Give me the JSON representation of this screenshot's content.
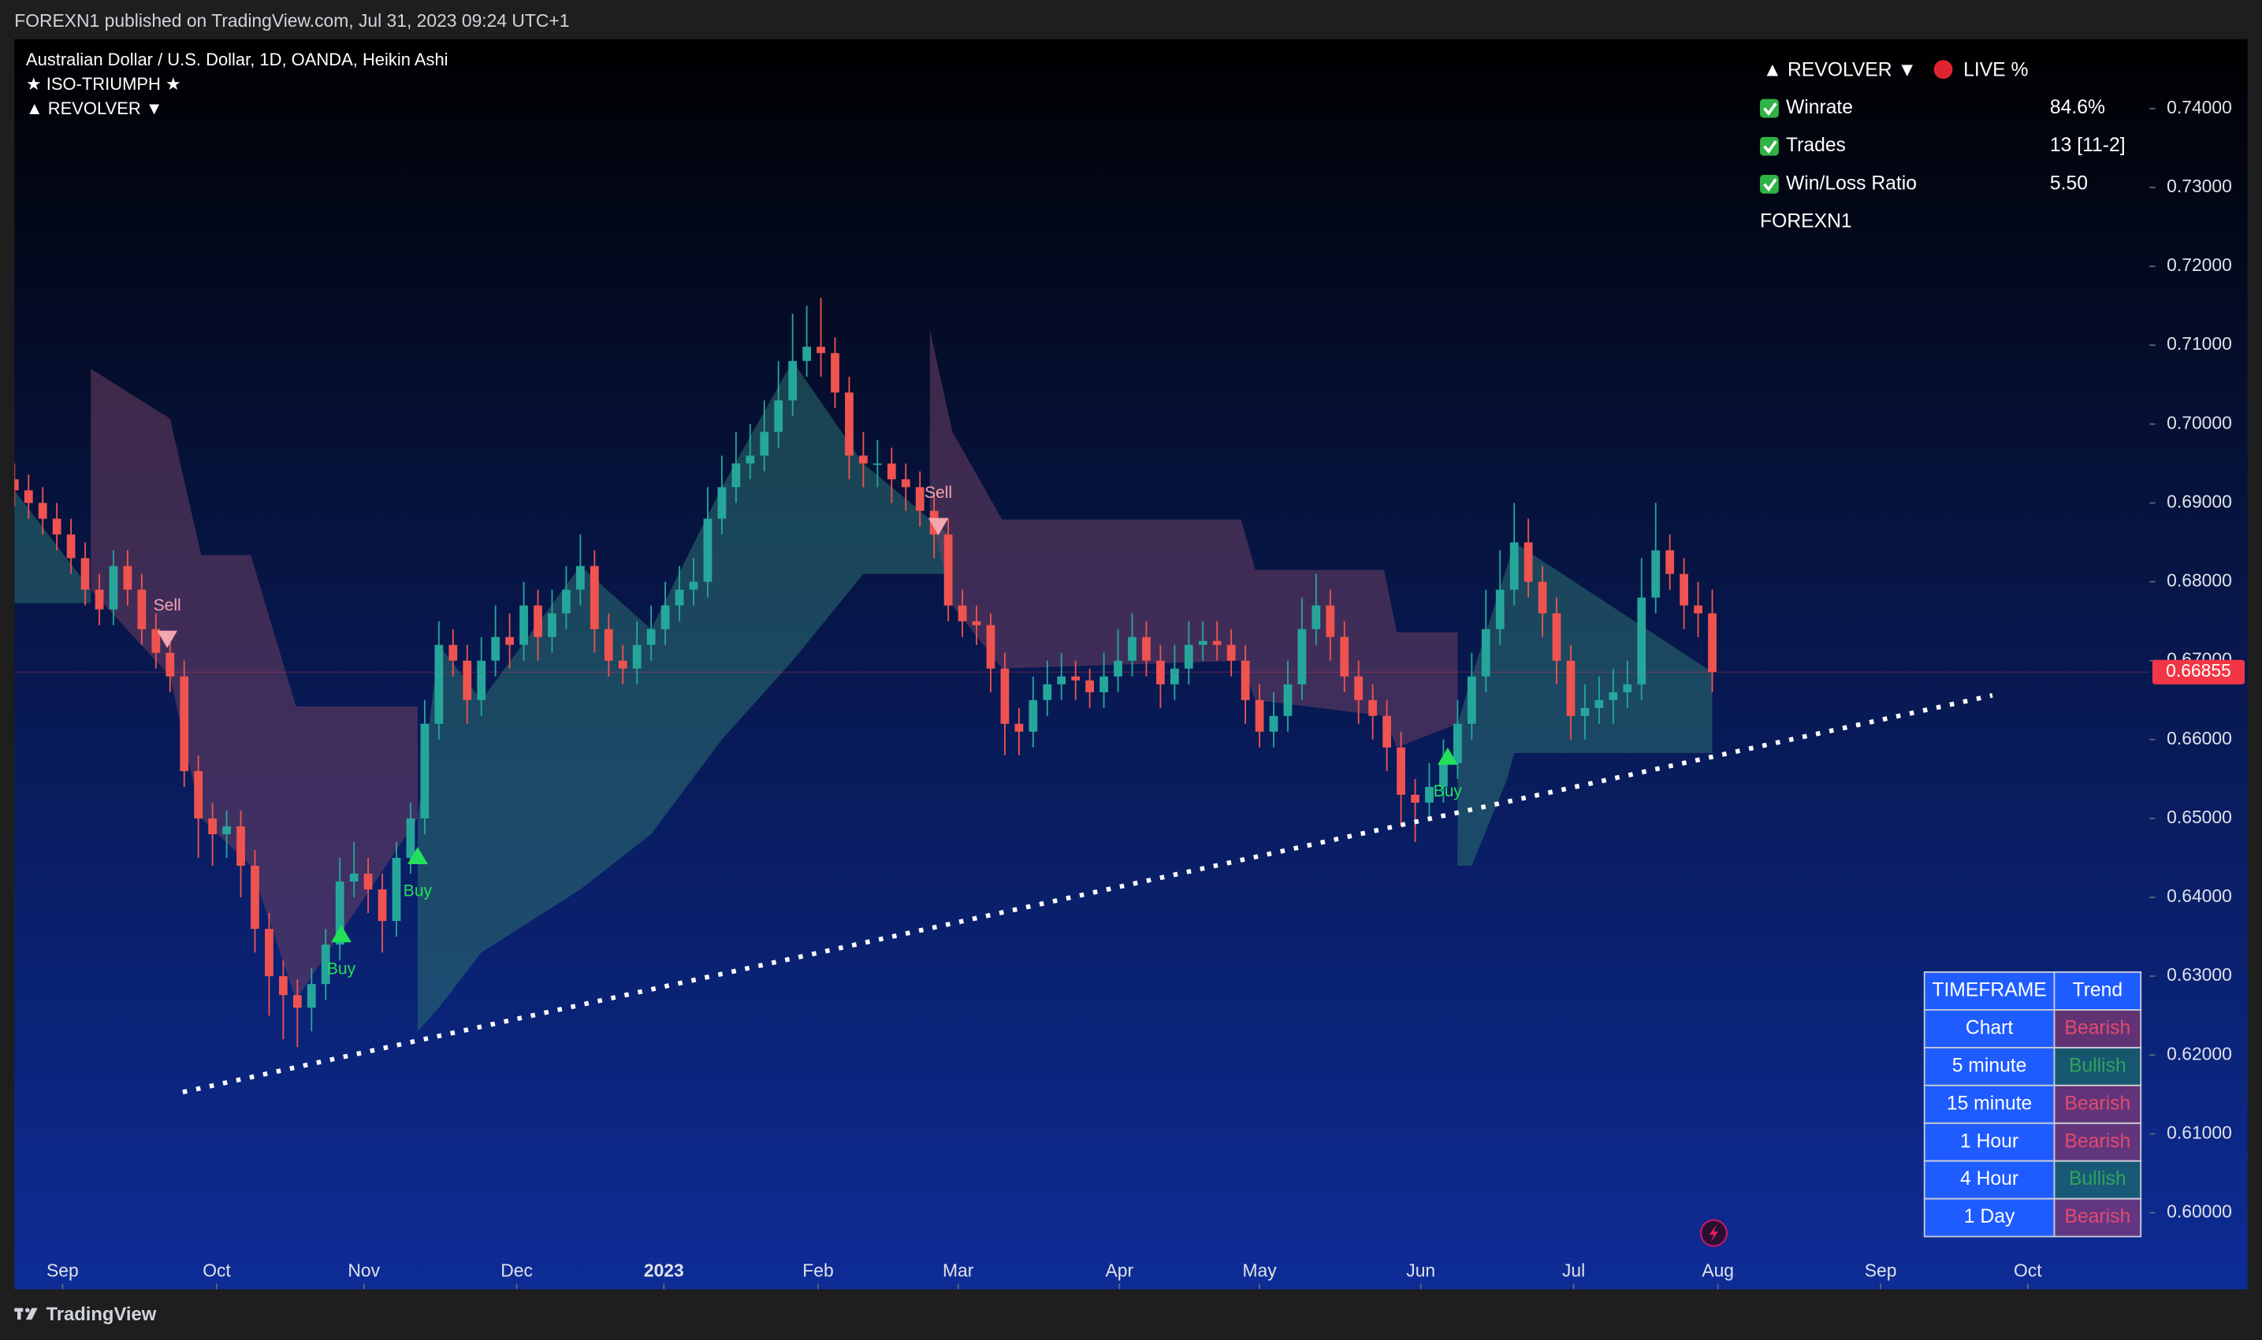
{
  "page": {
    "header": "FOREXN1 published on TradingView.com, Jul 31, 2023 09:24 UTC+1",
    "brand": "TradingView"
  },
  "chart_data": {
    "type": "candlestick",
    "legend": [
      "Australian Dollar / U.S. Dollar, 1D, OANDA, Heikin Ashi",
      "★ ISO-TRIUMPH ★",
      "▲ REVOLVER ▼"
    ],
    "up_color": "#26a69a",
    "down_color": "#ef5350",
    "xlim": [
      0,
      150.9
    ],
    "xticks": [
      {
        "value": 3.4,
        "label": "Sep"
      },
      {
        "value": 14.3,
        "label": "Oct"
      },
      {
        "value": 24.7,
        "label": "Nov"
      },
      {
        "value": 35.5,
        "label": "Dec"
      },
      {
        "value": 45.9,
        "label": "2023",
        "bold": true
      },
      {
        "value": 56.8,
        "label": "Feb"
      },
      {
        "value": 66.7,
        "label": "Mar"
      },
      {
        "value": 78.1,
        "label": "Apr"
      },
      {
        "value": 88.0,
        "label": "May"
      },
      {
        "value": 99.4,
        "label": "Jun"
      },
      {
        "value": 110.2,
        "label": "Jul"
      },
      {
        "value": 120.4,
        "label": "Aug"
      },
      {
        "value": 131.9,
        "label": "Sep"
      },
      {
        "value": 142.3,
        "label": "Oct"
      }
    ],
    "ylim": [
      0.5903,
      0.7488
    ],
    "yticks": [
      {
        "value": 0.74,
        "label": "0.74000"
      },
      {
        "value": 0.73,
        "label": "0.73000"
      },
      {
        "value": 0.72,
        "label": "0.72000"
      },
      {
        "value": 0.71,
        "label": "0.71000"
      },
      {
        "value": 0.7,
        "label": "0.70000"
      },
      {
        "value": 0.69,
        "label": "0.69000"
      },
      {
        "value": 0.68,
        "label": "0.68000"
      },
      {
        "value": 0.67,
        "label": "0.67000"
      },
      {
        "value": 0.66,
        "label": "0.66000"
      },
      {
        "value": 0.65,
        "label": "0.65000"
      },
      {
        "value": 0.64,
        "label": "0.64000"
      },
      {
        "value": 0.63,
        "label": "0.63000"
      },
      {
        "value": 0.62,
        "label": "0.62000"
      },
      {
        "value": 0.61,
        "label": "0.61000"
      },
      {
        "value": 0.6,
        "label": "0.60000"
      }
    ],
    "grid": false,
    "open": [
      0.693,
      0.6916,
      0.69,
      0.688,
      0.686,
      0.683,
      0.679,
      0.6765,
      0.682,
      0.679,
      0.674,
      0.671,
      0.668,
      0.656,
      0.65,
      0.648,
      0.649,
      0.644,
      0.636,
      0.63,
      0.6276,
      0.626,
      0.629,
      0.634,
      0.642,
      0.643,
      0.641,
      0.637,
      0.645,
      0.65,
      0.662,
      0.672,
      0.67,
      0.665,
      0.67,
      0.673,
      0.672,
      0.677,
      0.673,
      0.676,
      0.679,
      0.682,
      0.674,
      0.67,
      0.669,
      0.672,
      0.674,
      0.677,
      0.679,
      0.68,
      0.688,
      0.692,
      0.695,
      0.696,
      0.699,
      0.703,
      0.708,
      0.7098,
      0.709,
      0.704,
      0.696,
      0.695,
      0.695,
      0.693,
      0.692,
      0.689,
      0.686,
      0.677,
      0.675,
      0.6745,
      0.669,
      0.662,
      0.661,
      0.665,
      0.667,
      0.668,
      0.6675,
      0.666,
      0.668,
      0.67,
      0.673,
      0.67,
      0.667,
      0.669,
      0.672,
      0.6725,
      0.672,
      0.67,
      0.665,
      0.661,
      0.663,
      0.667,
      0.674,
      0.677,
      0.673,
      0.668,
      0.665,
      0.663,
      0.659,
      0.653,
      0.652,
      0.654,
      0.657,
      0.662,
      0.668,
      0.674,
      0.679,
      0.685,
      0.68,
      0.676,
      0.67,
      0.663,
      0.664,
      0.665,
      0.666,
      0.667,
      0.678,
      0.684,
      0.681,
      0.677,
      0.676
    ],
    "high": [
      0.695,
      0.6936,
      0.692,
      0.69,
      0.688,
      0.685,
      0.681,
      0.684,
      0.684,
      0.681,
      0.676,
      0.673,
      0.67,
      0.658,
      0.652,
      0.651,
      0.651,
      0.646,
      0.638,
      0.632,
      0.6296,
      0.631,
      0.636,
      0.645,
      0.647,
      0.645,
      0.643,
      0.647,
      0.652,
      0.665,
      0.675,
      0.674,
      0.672,
      0.673,
      0.677,
      0.676,
      0.68,
      0.679,
      0.679,
      0.682,
      0.686,
      0.684,
      0.676,
      0.672,
      0.675,
      0.677,
      0.68,
      0.682,
      0.683,
      0.692,
      0.696,
      0.699,
      0.7,
      0.703,
      0.708,
      0.714,
      0.715,
      0.716,
      0.711,
      0.706,
      0.699,
      0.698,
      0.697,
      0.695,
      0.694,
      0.691,
      0.688,
      0.679,
      0.677,
      0.676,
      0.671,
      0.664,
      0.668,
      0.67,
      0.671,
      0.67,
      0.669,
      0.671,
      0.674,
      0.676,
      0.675,
      0.672,
      0.672,
      0.675,
      0.675,
      0.675,
      0.674,
      0.672,
      0.667,
      0.666,
      0.67,
      0.678,
      0.681,
      0.679,
      0.675,
      0.67,
      0.667,
      0.665,
      0.661,
      0.655,
      0.657,
      0.66,
      0.665,
      0.671,
      0.679,
      0.684,
      0.69,
      0.688,
      0.682,
      0.678,
      0.672,
      0.667,
      0.668,
      0.669,
      0.67,
      0.683,
      0.69,
      0.686,
      0.683,
      0.68,
      0.679
    ],
    "low": [
      0.6896,
      0.688,
      0.686,
      0.684,
      0.681,
      0.677,
      0.6745,
      0.6745,
      0.677,
      0.672,
      0.669,
      0.666,
      0.654,
      0.645,
      0.644,
      0.645,
      0.64,
      0.633,
      0.625,
      0.622,
      0.621,
      0.623,
      0.627,
      0.632,
      0.64,
      0.638,
      0.633,
      0.635,
      0.643,
      0.648,
      0.66,
      0.668,
      0.662,
      0.663,
      0.668,
      0.669,
      0.67,
      0.67,
      0.671,
      0.674,
      0.677,
      0.671,
      0.668,
      0.667,
      0.667,
      0.67,
      0.672,
      0.675,
      0.677,
      0.678,
      0.686,
      0.69,
      0.693,
      0.694,
      0.697,
      0.701,
      0.706,
      0.706,
      0.702,
      0.693,
      0.692,
      0.692,
      0.69,
      0.689,
      0.687,
      0.683,
      0.675,
      0.673,
      0.672,
      0.666,
      0.658,
      0.658,
      0.659,
      0.663,
      0.665,
      0.665,
      0.664,
      0.664,
      0.666,
      0.668,
      0.668,
      0.664,
      0.665,
      0.667,
      0.67,
      0.67,
      0.668,
      0.662,
      0.659,
      0.659,
      0.661,
      0.665,
      0.672,
      0.67,
      0.666,
      0.662,
      0.66,
      0.656,
      0.649,
      0.647,
      0.65,
      0.652,
      0.655,
      0.66,
      0.666,
      0.672,
      0.677,
      0.678,
      0.673,
      0.667,
      0.66,
      0.66,
      0.662,
      0.662,
      0.664,
      0.665,
      0.676,
      0.679,
      0.674,
      0.673,
      0.666
    ],
    "close": [
      0.6916,
      0.69,
      0.688,
      0.686,
      0.683,
      0.679,
      0.6765,
      0.682,
      0.679,
      0.674,
      0.671,
      0.668,
      0.656,
      0.65,
      0.648,
      0.649,
      0.644,
      0.636,
      0.63,
      0.6276,
      0.626,
      0.629,
      0.634,
      0.642,
      0.643,
      0.641,
      0.637,
      0.645,
      0.65,
      0.662,
      0.672,
      0.67,
      0.665,
      0.67,
      0.673,
      0.672,
      0.677,
      0.673,
      0.676,
      0.679,
      0.682,
      0.674,
      0.67,
      0.669,
      0.672,
      0.674,
      0.677,
      0.679,
      0.68,
      0.688,
      0.692,
      0.695,
      0.696,
      0.699,
      0.703,
      0.708,
      0.7098,
      0.709,
      0.704,
      0.696,
      0.695,
      0.695,
      0.693,
      0.692,
      0.689,
      0.686,
      0.677,
      0.675,
      0.6745,
      0.669,
      0.662,
      0.661,
      0.665,
      0.667,
      0.668,
      0.6675,
      0.666,
      0.668,
      0.67,
      0.673,
      0.67,
      0.667,
      0.669,
      0.672,
      0.6725,
      0.672,
      0.67,
      0.665,
      0.661,
      0.663,
      0.667,
      0.674,
      0.677,
      0.673,
      0.668,
      0.665,
      0.663,
      0.659,
      0.653,
      0.652,
      0.654,
      0.657,
      0.662,
      0.668,
      0.674,
      0.679,
      0.685,
      0.68,
      0.676,
      0.67,
      0.663,
      0.664,
      0.665,
      0.666,
      0.667,
      0.678,
      0.684,
      0.681,
      0.677,
      0.676,
      0.66855
    ],
    "bands": [
      {
        "color": "#2b6f70",
        "x": [
          0,
          5.4
        ],
        "upper": [
          0.6916,
          0.679
        ],
        "lower": [
          0.6773,
          0.6773
        ]
      },
      {
        "color": "#6e3f63",
        "x": [
          5.4,
          11,
          13.2,
          16.7,
          19.9,
          28.5
        ],
        "upper": [
          0.707,
          0.7007,
          0.6834,
          0.6834,
          0.6642,
          0.6642
        ],
        "lower": [
          0.679,
          0.668,
          0.65,
          0.644,
          0.627,
          0.65
        ]
      },
      {
        "color": "#2b6f70",
        "x": [
          28.5,
          30,
          33,
          40,
          45,
          50,
          55,
          60,
          66
        ],
        "upper": [
          0.65,
          0.672,
          0.665,
          0.682,
          0.674,
          0.692,
          0.708,
          0.695,
          0.686
        ],
        "lower": [
          0.623,
          0.626,
          0.633,
          0.641,
          0.648,
          0.66,
          0.67,
          0.681,
          0.681
        ]
      },
      {
        "color": "#6e3f63",
        "x": [
          64.7,
          66.3,
          69.8,
          86.7,
          87.7,
          96.8,
          97.7,
          102
        ],
        "upper": [
          0.712,
          0.699,
          0.6879,
          0.6879,
          0.6815,
          0.6815,
          0.6736,
          0.6736
        ],
        "lower": [
          0.689,
          0.677,
          0.669,
          0.67,
          0.665,
          0.663,
          0.659,
          0.662
        ]
      },
      {
        "color": "#2b6f70",
        "x": [
          102,
          103,
          105.5,
          106,
          120
        ],
        "upper": [
          0.662,
          0.668,
          0.682,
          0.685,
          0.66855
        ],
        "lower": [
          0.644,
          0.644,
          0.655,
          0.6583,
          0.6583
        ]
      }
    ],
    "signals": [
      {
        "label": "Sell",
        "x": 10.8,
        "y": 0.6727,
        "direction": "down",
        "color": "#f4a6b0"
      },
      {
        "label": "Buy",
        "x": 23.1,
        "y": 0.6354,
        "direction": "up",
        "color": "#22e05a"
      },
      {
        "label": "Buy",
        "x": 28.5,
        "y": 0.6453,
        "direction": "up",
        "color": "#22e05a"
      },
      {
        "label": "Sell",
        "x": 65.3,
        "y": 0.687,
        "direction": "down",
        "color": "#f4a6b0"
      },
      {
        "label": "Buy",
        "x": 101.3,
        "y": 0.6579,
        "direction": "up",
        "color": "#22e05a"
      }
    ],
    "trendline": {
      "x": [
        11.9,
        139.8
      ],
      "y": [
        0.6153,
        0.6656
      ],
      "color": "#ffffff"
    },
    "last_price": {
      "value": 0.66855,
      "color": "#f23645"
    },
    "info_panel": {
      "title": "▲ REVOLVER ▼",
      "live": "LIVE %",
      "rows": [
        [
          "Winrate",
          "84.6%"
        ],
        [
          "Trades",
          "13 [11-2]"
        ],
        [
          "Win/Loss Ratio",
          "5.50"
        ]
      ],
      "footer": "FOREXN1"
    },
    "trend_table": {
      "header": [
        "TIMEFRAME",
        "Trend"
      ],
      "rows": [
        [
          "Chart",
          "Bearish"
        ],
        [
          "5 minute",
          "Bullish"
        ],
        [
          "15 minute",
          "Bearish"
        ],
        [
          "1 Hour",
          "Bearish"
        ],
        [
          "4 Hour",
          "Bullish"
        ],
        [
          "1 Day",
          "Bearish"
        ]
      ],
      "trend_colors": [
        "#e34a6f",
        "#2ea35c",
        "#e34a6f",
        "#e34a6f",
        "#2ea35c",
        "#e34a6f"
      ]
    }
  }
}
